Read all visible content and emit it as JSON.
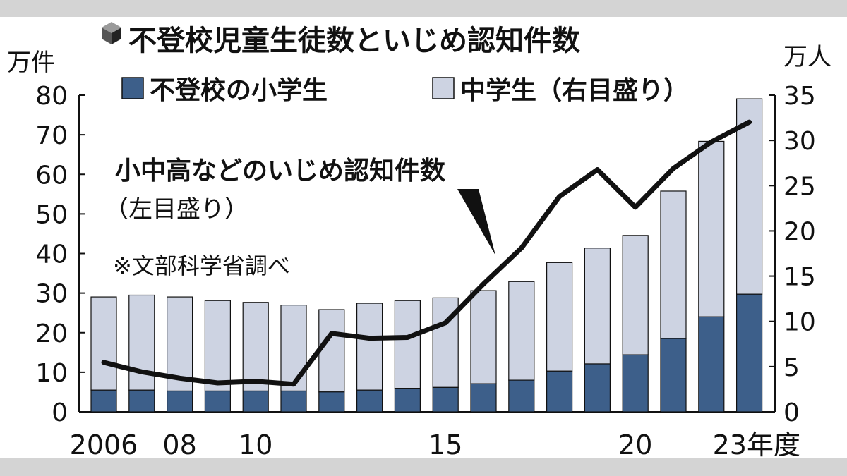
{
  "chart_data": {
    "type": "bar",
    "title": "不登校児童生徒数といじめ認知件数",
    "left_unit": "万件",
    "right_unit": "万人",
    "left_ylim": [
      0,
      80
    ],
    "right_ylim": [
      0,
      35
    ],
    "left_ticks": [
      "0",
      "10",
      "20",
      "30",
      "40",
      "50",
      "60",
      "70",
      "80"
    ],
    "right_ticks": [
      "0",
      "5",
      "10",
      "15",
      "20",
      "25",
      "30",
      "35"
    ],
    "x_tick_labels": [
      {
        "index": 0,
        "text": "2006"
      },
      {
        "index": 2,
        "text": "08"
      },
      {
        "index": 4,
        "text": "10"
      },
      {
        "index": 9,
        "text": "15"
      },
      {
        "index": 14,
        "text": "20"
      },
      {
        "index": 17,
        "text": "23年度"
      }
    ],
    "categories": [
      "2006",
      "2007",
      "2008",
      "2009",
      "2010",
      "2011",
      "2012",
      "2013",
      "2014",
      "2015",
      "2016",
      "2017",
      "2018",
      "2019",
      "2020",
      "2021",
      "2022",
      "2023"
    ],
    "series": [
      {
        "name": "不登校の小学生",
        "axis": "right",
        "stack": "total",
        "color": "#3d5f8a",
        "values": [
          2.4,
          2.4,
          2.3,
          2.3,
          2.3,
          2.3,
          2.2,
          2.4,
          2.6,
          2.7,
          3.1,
          3.5,
          4.5,
          5.3,
          6.3,
          8.1,
          10.5,
          13.0
        ]
      },
      {
        "name": "中学生（右目盛り）",
        "axis": "right",
        "stack": "total",
        "color": "#cdd3e2",
        "values": [
          10.3,
          10.5,
          10.4,
          10.0,
          9.8,
          9.5,
          9.1,
          9.6,
          9.7,
          9.9,
          10.3,
          10.9,
          12.0,
          12.8,
          13.2,
          16.3,
          19.4,
          21.6
        ]
      },
      {
        "name": "小中高などのいじめ認知件数",
        "annotation": "（左目盛り）",
        "type": "line",
        "axis": "left",
        "color": "#111111",
        "values": [
          12.5,
          10.1,
          8.5,
          7.3,
          7.7,
          7.0,
          19.8,
          18.6,
          18.8,
          22.5,
          32.3,
          41.4,
          54.4,
          61.2,
          51.7,
          61.5,
          68.2,
          73.2
        ]
      }
    ],
    "note": "※文部科学省調べ",
    "legend_position": "top-left",
    "grid": false
  }
}
